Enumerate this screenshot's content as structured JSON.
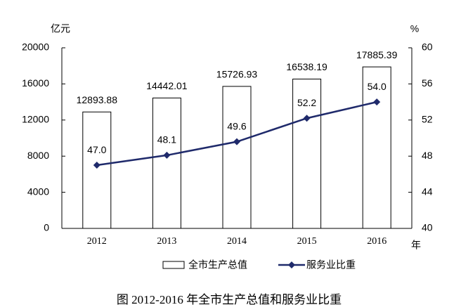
{
  "chart_data": {
    "type": "combo",
    "y_label": "亿元",
    "y2_label": "%",
    "x_label": "年",
    "caption": "图 2012-2016 年全市生产总值和服务业比重",
    "categories": [
      "2012",
      "2013",
      "2014",
      "2015",
      "2016"
    ],
    "series": [
      {
        "name": "全市生产总值",
        "type": "bar",
        "color": "#ffffff",
        "values": [
          12893.88,
          14442.01,
          15726.93,
          16538.19,
          17885.39
        ]
      },
      {
        "name": "服务业比重",
        "type": "line",
        "axis": "y2",
        "color": "#1f2a6b",
        "values": [
          47.0,
          48.1,
          49.6,
          52.2,
          54.0
        ],
        "value_labels": [
          "47.0",
          "48.1",
          "49.6",
          "52.2",
          "54.0"
        ]
      }
    ],
    "ylim": [
      0,
      20000
    ],
    "yticks": [
      0,
      4000,
      8000,
      12000,
      16000,
      20000
    ],
    "y2lim": [
      40,
      60
    ],
    "y2ticks": [
      40,
      44,
      48,
      52,
      56,
      60
    ]
  }
}
